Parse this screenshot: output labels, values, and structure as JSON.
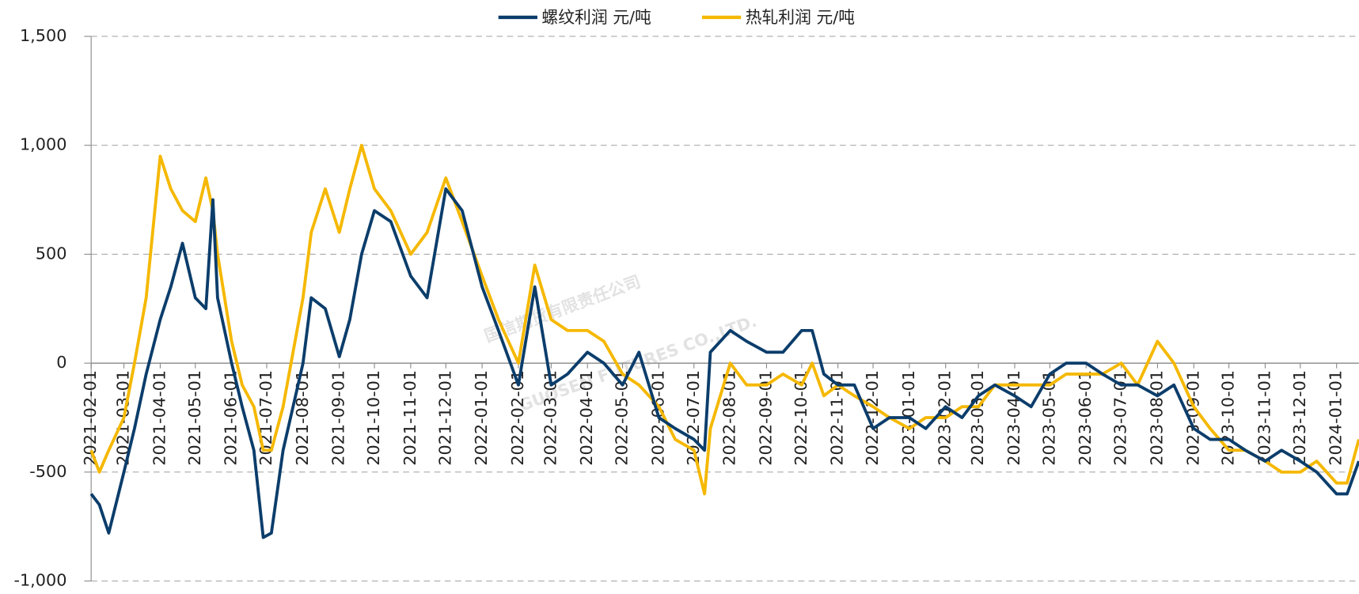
{
  "chart_data": {
    "type": "line",
    "watermark": [
      "国信期货有限责任公司",
      "GUOSEN FUTURES CO.,LTD."
    ],
    "x": [
      "2021-02-01",
      "2021-02-08",
      "2021-02-16",
      "2021-03-01",
      "2021-03-10",
      "2021-03-20",
      "2021-04-01",
      "2021-04-10",
      "2021-04-20",
      "2021-05-01",
      "2021-05-10",
      "2021-05-16",
      "2021-05-20",
      "2021-06-01",
      "2021-06-10",
      "2021-06-20",
      "2021-06-28",
      "2021-07-05",
      "2021-07-15",
      "2021-08-01",
      "2021-08-08",
      "2021-08-20",
      "2021-09-01",
      "2021-09-10",
      "2021-09-20",
      "2021-10-01",
      "2021-10-15",
      "2021-11-01",
      "2021-11-15",
      "2021-12-01",
      "2021-12-15",
      "2022-01-01",
      "2022-01-15",
      "2022-02-01",
      "2022-02-15",
      "2022-03-01",
      "2022-03-15",
      "2022-04-01",
      "2022-04-15",
      "2022-05-01",
      "2022-05-15",
      "2022-06-01",
      "2022-06-15",
      "2022-07-01",
      "2022-07-10",
      "2022-07-15",
      "2022-08-01",
      "2022-08-15",
      "2022-09-01",
      "2022-09-15",
      "2022-10-01",
      "2022-10-10",
      "2022-10-20",
      "2022-11-01",
      "2022-11-15",
      "2022-12-01",
      "2022-12-15",
      "2023-01-01",
      "2023-01-15",
      "2023-02-01",
      "2023-02-15",
      "2023-03-01",
      "2023-03-15",
      "2023-04-01",
      "2023-04-15",
      "2023-05-01",
      "2023-05-15",
      "2023-06-01",
      "2023-06-15",
      "2023-07-01",
      "2023-07-15",
      "2023-08-01",
      "2023-08-15",
      "2023-09-01",
      "2023-09-15",
      "2023-10-01",
      "2023-10-15",
      "2023-11-01",
      "2023-11-15",
      "2023-12-01",
      "2023-12-15",
      "2024-01-01",
      "2024-01-10",
      "2024-01-20"
    ],
    "series": [
      {
        "name": "螺纹利润 元/吨",
        "color": "#0b3d6b",
        "values": [
          -600,
          -650,
          -780,
          -500,
          -300,
          -50,
          200,
          350,
          550,
          300,
          250,
          750,
          300,
          0,
          -200,
          -400,
          -800,
          -780,
          -400,
          0,
          300,
          250,
          30,
          200,
          500,
          700,
          650,
          400,
          300,
          800,
          700,
          350,
          150,
          -100,
          350,
          -100,
          -50,
          50,
          0,
          -100,
          50,
          -250,
          -300,
          -350,
          -400,
          50,
          150,
          100,
          50,
          50,
          150,
          150,
          -50,
          -100,
          -100,
          -300,
          -250,
          -250,
          -300,
          -200,
          -250,
          -150,
          -100,
          -150,
          -200,
          -50,
          0,
          0,
          -50,
          -100,
          -100,
          -150,
          -100,
          -300,
          -350,
          -350,
          -400,
          -450,
          -400,
          -450,
          -500,
          -600,
          -600,
          -450
        ]
      },
      {
        "name": "热轧利润 元/吨",
        "color": "#f5b800",
        "values": [
          -400,
          -500,
          -400,
          -250,
          0,
          300,
          950,
          800,
          700,
          650,
          850,
          700,
          500,
          100,
          -100,
          -200,
          -400,
          -400,
          -200,
          300,
          600,
          800,
          600,
          800,
          1000,
          800,
          700,
          500,
          600,
          850,
          650,
          400,
          200,
          0,
          450,
          200,
          150,
          150,
          100,
          -50,
          -100,
          -200,
          -350,
          -400,
          -600,
          -300,
          0,
          -100,
          -100,
          -50,
          -100,
          0,
          -150,
          -100,
          -150,
          -200,
          -250,
          -300,
          -250,
          -250,
          -200,
          -200,
          -100,
          -100,
          -100,
          -100,
          -50,
          -50,
          -50,
          0,
          -100,
          100,
          0,
          -200,
          -300,
          -400,
          -400,
          -450,
          -500,
          -500,
          -450,
          -550,
          -550,
          -350
        ]
      }
    ],
    "xlim": [
      "2021-02-01",
      "2024-01-20"
    ],
    "xticks": [
      "2021-02-01",
      "2021-03-01",
      "2021-04-01",
      "2021-05-01",
      "2021-06-01",
      "2021-07-01",
      "2021-08-01",
      "2021-09-01",
      "2021-10-01",
      "2021-11-01",
      "2021-12-01",
      "2022-01-01",
      "2022-02-01",
      "2022-03-01",
      "2022-04-01",
      "2022-05-01",
      "2022-06-01",
      "2022-07-01",
      "2022-08-01",
      "2022-09-01",
      "2022-10-01",
      "2022-11-01",
      "2022-12-01",
      "2023-01-01",
      "2023-02-01",
      "2023-03-01",
      "2023-04-01",
      "2023-05-01",
      "2023-06-01",
      "2023-07-01",
      "2023-08-01",
      "2023-09-01",
      "2023-10-01",
      "2023-11-01",
      "2023-12-01",
      "2024-01-01"
    ],
    "ylim": [
      -1000,
      1500
    ],
    "yticks": [
      {
        "value": -1000,
        "label": "-1,000"
      },
      -500,
      0,
      500,
      {
        "value": 1000,
        "label": "1,000"
      },
      {
        "value": 1500,
        "label": "1,500"
      }
    ],
    "grid": true,
    "legend": "top"
  }
}
